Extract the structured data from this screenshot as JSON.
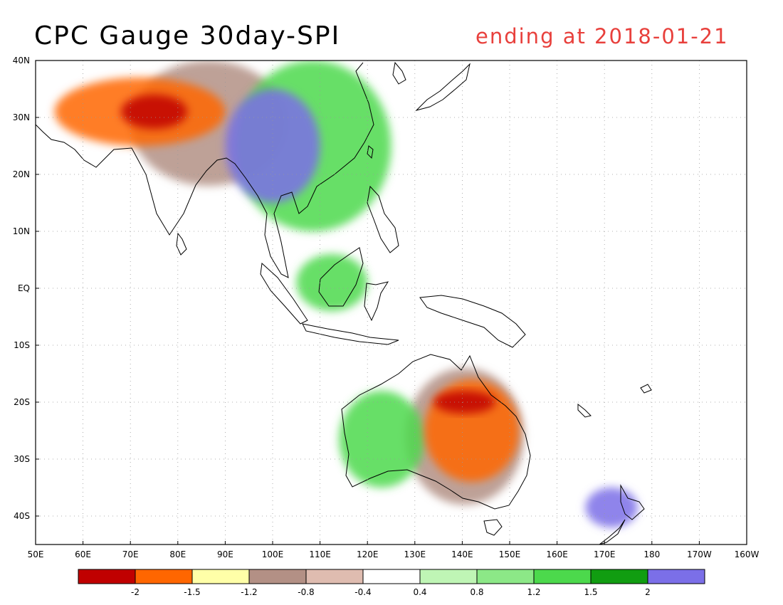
{
  "header": {
    "title": "CPC Gauge 30day-SPI",
    "subtitle": "ending at 2018-01-21"
  },
  "map": {
    "lon_range": [
      50,
      200
    ],
    "lat_range": [
      -45,
      40
    ],
    "lon_ticks": [
      {
        "value": 50,
        "label": "50E"
      },
      {
        "value": 60,
        "label": "60E"
      },
      {
        "value": 70,
        "label": "70E"
      },
      {
        "value": 80,
        "label": "80E"
      },
      {
        "value": 90,
        "label": "90E"
      },
      {
        "value": 100,
        "label": "100E"
      },
      {
        "value": 110,
        "label": "110E"
      },
      {
        "value": 120,
        "label": "120E"
      },
      {
        "value": 130,
        "label": "130E"
      },
      {
        "value": 140,
        "label": "140E"
      },
      {
        "value": 150,
        "label": "150E"
      },
      {
        "value": 160,
        "label": "160E"
      },
      {
        "value": 170,
        "label": "170E"
      },
      {
        "value": 180,
        "label": "180"
      },
      {
        "value": 190,
        "label": "170W"
      },
      {
        "value": 200,
        "label": "160W"
      }
    ],
    "lat_ticks": [
      {
        "value": 40,
        "label": "40N"
      },
      {
        "value": 30,
        "label": "30N"
      },
      {
        "value": 20,
        "label": "20N"
      },
      {
        "value": 10,
        "label": "10N"
      },
      {
        "value": 0,
        "label": "EQ"
      },
      {
        "value": -10,
        "label": "10S"
      },
      {
        "value": -20,
        "label": "20S"
      },
      {
        "value": -30,
        "label": "30S"
      },
      {
        "value": -40,
        "label": "40S"
      }
    ],
    "grid": "dotted"
  },
  "legend": {
    "colors": [
      "#c00000",
      "#ff6600",
      "#ffffa8",
      "#b39085",
      "#dfbcb0",
      "#ffffff",
      "#bff5b5",
      "#8ce887",
      "#4cd94c",
      "#119d11",
      "#7b6fe8"
    ],
    "labels": [
      "-2",
      "-1.5",
      "-1.2",
      "-0.8",
      "-0.4",
      "0.4",
      "0.8",
      "1.2",
      "1.5",
      "2"
    ]
  },
  "regions": [
    {
      "category": "-2",
      "color": "#c00000",
      "lon": [
        68,
        82
      ],
      "lat": [
        28,
        34
      ]
    },
    {
      "category": "-2",
      "color": "#c00000",
      "lon": [
        134,
        147
      ],
      "lat": [
        -22,
        -18
      ]
    },
    {
      "category": "-1.5",
      "color": "#ff6600",
      "lon": [
        54,
        90
      ],
      "lat": [
        25,
        37
      ]
    },
    {
      "category": "-1.5",
      "color": "#ff6600",
      "lon": [
        132,
        152
      ],
      "lat": [
        -34,
        -16
      ]
    },
    {
      "category": "-0.8",
      "color": "#b39085",
      "lon": [
        70,
        103
      ],
      "lat": [
        18,
        40
      ]
    },
    {
      "category": "-0.8",
      "color": "#b39085",
      "lon": [
        128,
        153
      ],
      "lat": [
        -38,
        -14
      ]
    },
    {
      "category": "1.2",
      "color": "#4cd94c",
      "lon": [
        92,
        125
      ],
      "lat": [
        10,
        40
      ]
    },
    {
      "category": "1.2",
      "color": "#4cd94c",
      "lon": [
        114,
        132
      ],
      "lat": [
        -35,
        -18
      ]
    },
    {
      "category": "1.2",
      "color": "#4cd94c",
      "lon": [
        105,
        120
      ],
      "lat": [
        -4,
        6
      ]
    },
    {
      "category": "2",
      "color": "#7b6fe8",
      "lon": [
        90,
        110
      ],
      "lat": [
        15,
        35
      ]
    },
    {
      "category": "2",
      "color": "#7b6fe8",
      "lon": [
        166,
        177
      ],
      "lat": [
        -42,
        -35
      ]
    }
  ]
}
